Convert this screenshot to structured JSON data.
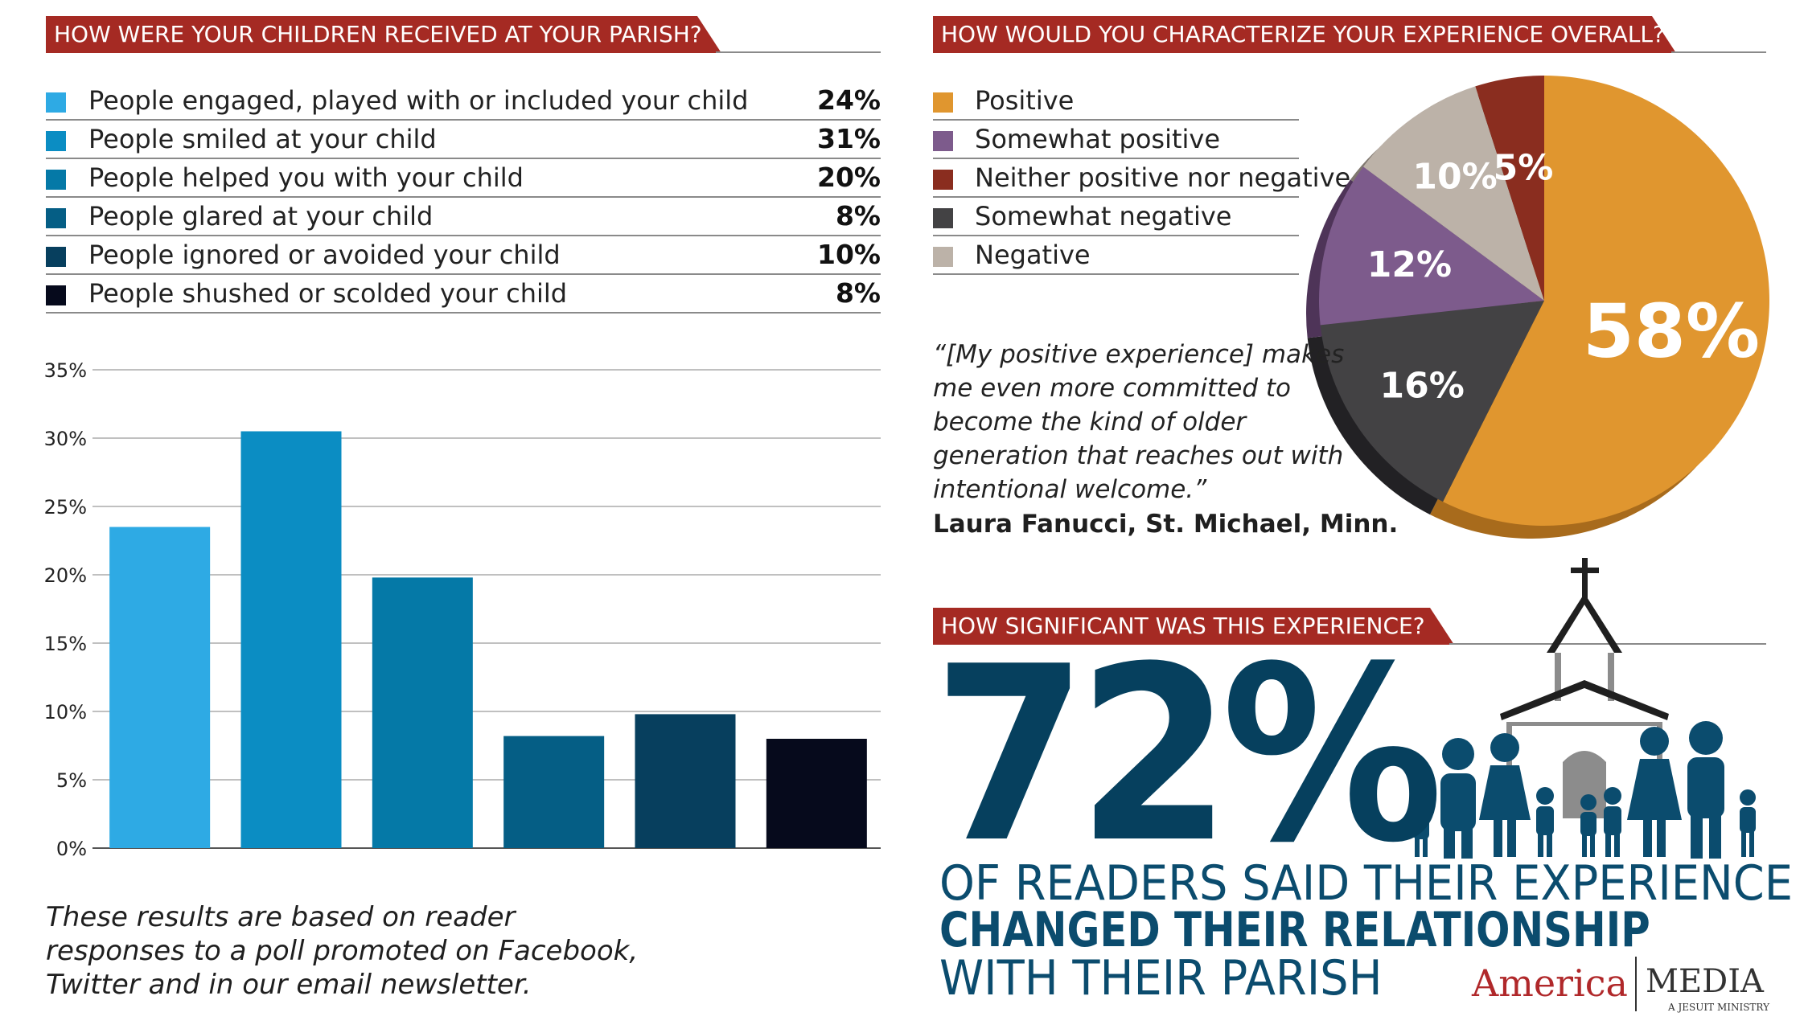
{
  "headers": {
    "q1": "HOW WERE YOUR CHILDREN RECEIVED AT YOUR PARISH?",
    "q2": "HOW WOULD YOU CHARACTERIZE YOUR EXPERIENCE OVERALL?",
    "q3": "HOW SIGNIFICANT WAS THIS EXPERIENCE?"
  },
  "colors": {
    "banner": "#a52a23",
    "bar1": "#2eaae4",
    "bar2": "#0b8dc3",
    "bar3": "#0579a7",
    "bar4": "#055e85",
    "bar5": "#073f5e",
    "bar6": "#060a1c",
    "positive": "#e0962f",
    "somewhat_positive": "#7d5b8c",
    "neutral": "#8a2d1f",
    "somewhat_negative": "#434244",
    "negative": "#bcb2a8"
  },
  "chart_data": [
    {
      "type": "bar",
      "categories": [
        "People engaged, played with or included your child",
        "People smiled at your child",
        "People helped you with your child",
        "People glared at your child",
        "People ignored or avoided your child",
        "People shushed or scolded your child"
      ],
      "value_labels": [
        "24%",
        "31%",
        "20%",
        "8%",
        "10%",
        "8%"
      ],
      "values": [
        23.5,
        30.5,
        19.8,
        8.2,
        9.8,
        8.0
      ],
      "ylim": [
        0,
        35
      ],
      "yticks": [
        "0%",
        "5%",
        "10%",
        "15%",
        "20%",
        "25%",
        "30%",
        "35%"
      ],
      "grid": true
    },
    {
      "type": "pie",
      "labels": [
        "Positive",
        "Somewhat positive",
        "Neither positive nor negative",
        "Somewhat negative",
        "Negative"
      ],
      "values": [
        58,
        12,
        5,
        16,
        10
      ],
      "value_labels": [
        "58%",
        "12%",
        "5%",
        "16%",
        "10%"
      ]
    }
  ],
  "quote": {
    "text": "“[My positive experience] makes me even more committed to become the kind of older generation that reaches out with intentional welcome.”",
    "author": "Laura Fanucci, St. Michael, Minn."
  },
  "significance": {
    "value": "72%",
    "line1": "OF READERS SAID THEIR EXPERIENCE",
    "line2": "CHANGED THEIR RELATIONSHIP",
    "line3": "WITH THEIR PARISH"
  },
  "footnote": "These results are based on reader responses to a poll promoted on Facebook, Twitter and in our email newsletter.",
  "brand": {
    "name1": "America",
    "name2": "MEDIA",
    "tagline": "A JESUIT MINISTRY"
  }
}
